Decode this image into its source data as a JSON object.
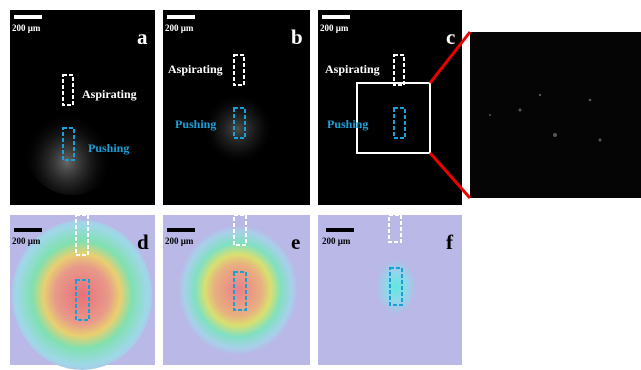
{
  "panels": [
    {
      "label": "a",
      "scale_bar": "200 µm",
      "aspirating": "Aspirating",
      "pushing": "Pushing"
    },
    {
      "label": "b",
      "scale_bar": "200 µm",
      "aspirating": "Aspirating",
      "pushing": "Pushing"
    },
    {
      "label": "c",
      "scale_bar": "200 µm",
      "aspirating": "Aspirating",
      "pushing": "Pushing"
    },
    {
      "label": "d",
      "scale_bar": "200 µm"
    },
    {
      "label": "e",
      "scale_bar": "200 µm"
    },
    {
      "label": "f",
      "scale_bar": "200 µm"
    }
  ]
}
